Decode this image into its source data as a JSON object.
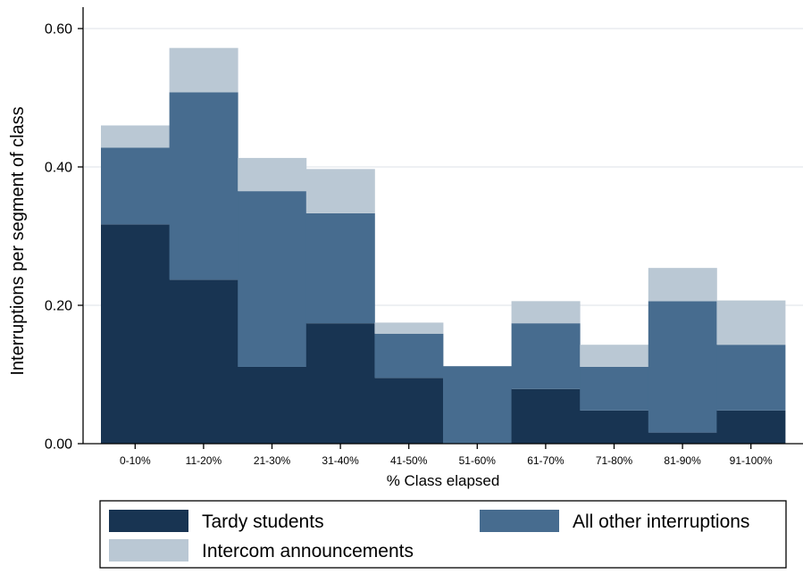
{
  "chart_data": {
    "type": "bar",
    "stacked": true,
    "xlabel": "% Class elapsed",
    "ylabel": "Interruptions per segment of class",
    "ylim": [
      0,
      0.64
    ],
    "yticks": [
      "0.00",
      "0.20",
      "0.40",
      "0.60"
    ],
    "ytick_values": [
      0,
      0.2,
      0.4,
      0.6
    ],
    "grid": true,
    "legend_position": "bottom",
    "categories": [
      "0-10%",
      "11-20%",
      "21-30%",
      "31-40%",
      "41-50%",
      "51-60%",
      "61-70%",
      "71-80%",
      "81-90%",
      "91-100%"
    ],
    "series": [
      {
        "name": "Tardy students",
        "color": "#183452",
        "values": [
          0.317,
          0.237,
          0.111,
          0.174,
          0.095,
          0.0,
          0.079,
          0.048,
          0.016,
          0.048
        ]
      },
      {
        "name": "All other interruptions",
        "color": "#476c8f",
        "values": [
          0.111,
          0.271,
          0.254,
          0.159,
          0.064,
          0.112,
          0.095,
          0.063,
          0.19,
          0.095
        ]
      },
      {
        "name": "Intercom announcements",
        "color": "#bac8d4",
        "values": [
          0.032,
          0.064,
          0.048,
          0.064,
          0.016,
          0.0,
          0.032,
          0.032,
          0.048,
          0.064
        ]
      }
    ]
  }
}
